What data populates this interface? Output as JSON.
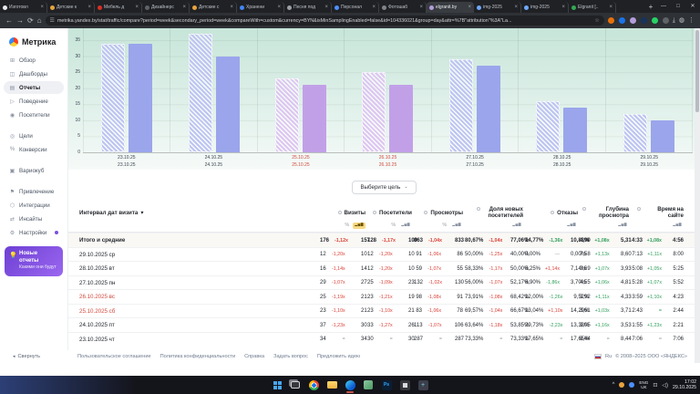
{
  "browser": {
    "tabs": [
      {
        "label": "Изготовл",
        "fav": "#e8eaed",
        "active": false
      },
      {
        "label": "Детские к",
        "fav": "#e8a33d",
        "active": false
      },
      {
        "label": "Мебель д",
        "fav": "#d93025",
        "active": false
      },
      {
        "label": "Дизайнерс",
        "fav": "#5f6368",
        "active": false
      },
      {
        "label": "Детские с",
        "fav": "#e8a33d",
        "active": false
      },
      {
        "label": "Хранени",
        "fav": "#4285f4",
        "active": false
      },
      {
        "label": "Песня под",
        "fav": "#9aa0a6",
        "active": false
      },
      {
        "label": "Персонал",
        "fav": "#4d90fe",
        "active": false
      },
      {
        "label": "Фотошаб",
        "fav": "#7f8489",
        "active": false
      },
      {
        "label": "elgranit.by",
        "fav": "#b39ddb",
        "active": true
      },
      {
        "label": "img-2025",
        "fav": "#6ea8fe",
        "active": false
      },
      {
        "label": "img-2025",
        "fav": "#6ea8fe",
        "active": false
      },
      {
        "label": "Elgranit [..",
        "fav": "#34a853",
        "active": false
      }
    ],
    "new_tab": "+",
    "window_controls": [
      "—",
      "□",
      "✕"
    ],
    "nav_back": "←",
    "nav_forward": "→",
    "nav_reload": "⟳",
    "nav_home": "⌂",
    "site_icon": "☰",
    "bookmark_star": "☆",
    "url": "metrika.yandex.by/stat/traffic/compare?period=week&secondary_period=week&compareWith=custom&currency=BYN&isMinSamplingEnabled=false&id=104336021&group=day&attr=%7B\"attribution\"%3A\"La...",
    "extensions": [
      "#e8710a",
      "#1a73e8",
      "#b39ddb",
      "#16335b",
      "#25d366",
      "#5f6368"
    ],
    "download_icon": "⤓",
    "profile_icon": "◍",
    "menu_icon": "⋮"
  },
  "sidebar": {
    "logo": "Метрика",
    "items": [
      {
        "icon": "⊞",
        "label": "Обзор",
        "selected": false,
        "gap": false,
        "dot": false
      },
      {
        "icon": "◫",
        "label": "Дашборды",
        "selected": false,
        "gap": false,
        "dot": false
      },
      {
        "icon": "▤",
        "label": "Отчеты",
        "selected": true,
        "gap": false,
        "dot": false
      },
      {
        "icon": "▷",
        "label": "Поведение",
        "selected": false,
        "gap": false,
        "dot": false
      },
      {
        "icon": "◉",
        "label": "Посетители",
        "selected": false,
        "gap": false,
        "dot": false
      },
      {
        "icon": "◎",
        "label": "Цели",
        "selected": false,
        "gap": true,
        "dot": false
      },
      {
        "icon": "%",
        "label": "Конверсии",
        "selected": false,
        "gap": false,
        "dot": false
      },
      {
        "icon": "▣",
        "label": "Вариокуб",
        "selected": false,
        "gap": true,
        "dot": false
      },
      {
        "icon": "⚑",
        "label": "Привлечение",
        "selected": false,
        "gap": true,
        "dot": false
      },
      {
        "icon": "⬡",
        "label": "Интеграции",
        "selected": false,
        "gap": false,
        "dot": false
      },
      {
        "icon": "⇄",
        "label": "Инсайты",
        "selected": false,
        "gap": false,
        "dot": false
      },
      {
        "icon": "⚙",
        "label": "Настройки",
        "selected": false,
        "gap": false,
        "dot": true
      }
    ],
    "promo": {
      "icon": "💡",
      "title": "Новые отчеты",
      "subtitle": "Какими они будут"
    }
  },
  "chart_data": {
    "type": "bar",
    "metric": "Визиты",
    "categories": [
      "23.10.25",
      "24.10.25",
      "25.10.25",
      "26.10.25",
      "27.10.25",
      "28.10.25",
      "29.10.25"
    ],
    "weekend": [
      false,
      false,
      true,
      true,
      false,
      false,
      false
    ],
    "series": [
      {
        "name": "Период A (штриховка)",
        "style": "hatched",
        "values": [
          34,
          37,
          23,
          25,
          29,
          16,
          12
        ]
      },
      {
        "name": "Период B (сравнение)",
        "style": "solid",
        "values": [
          34,
          30,
          21,
          21,
          27,
          14,
          10
        ]
      }
    ],
    "ylim": [
      0,
      35
    ],
    "yticks": [
      0,
      5,
      10,
      15,
      20,
      25,
      30,
      35
    ],
    "grid": true,
    "colors": {
      "weekday_a": "#bdc4f2",
      "weekday_b": "#9aa5ec",
      "weekend_a": "#ddc6f1",
      "weekend_b": "#c2a0e8"
    }
  },
  "goal_button": {
    "label": "Выберите цель",
    "caret": "⌄"
  },
  "table": {
    "first_col": "Интервал дат визита",
    "sort_caret": "▾",
    "percent_icon": "%",
    "bars_icon": "▂▅▇",
    "columns": [
      {
        "label": "Визиты",
        "percent_icon": true,
        "selected": true,
        "wide_b": false
      },
      {
        "label": "Посетители",
        "percent_icon": true,
        "selected": false,
        "wide_b": false
      },
      {
        "label": "Просмотры",
        "percent_icon": true,
        "selected": false,
        "wide_b": false
      },
      {
        "label": "Доля новых посетителей",
        "percent_icon": false,
        "selected": false,
        "wide_b": true
      },
      {
        "label": "Отказы",
        "percent_icon": false,
        "selected": false,
        "wide_b": true
      },
      {
        "label": "Глубина просмотра",
        "percent_icon": false,
        "selected": false,
        "wide_b": false
      },
      {
        "label": "Время на сайте",
        "percent_icon": false,
        "selected": false,
        "wide_b": false
      }
    ],
    "rows": [
      {
        "label": "Итого и средние",
        "weekend": false,
        "total": true,
        "cells": [
          {
            "a": "176",
            "r": "-1,12x",
            "b": "157",
            "c": "red"
          },
          {
            "a": "128",
            "r": "-1,17x",
            "b": "109",
            "c": "red"
          },
          {
            "a": "863",
            "r": "-1,04x",
            "b": "833",
            "c": "red"
          },
          {
            "a": "80,67%",
            "r": "-1,04x",
            "b": "77,06%",
            "c": "red"
          },
          {
            "a": "14,77%",
            "r": "-1,36x",
            "b": "10,83%",
            "c": "green"
          },
          {
            "a": "4,90",
            "r": "+1,08x",
            "b": "5,31",
            "c": "green"
          },
          {
            "a": "4:33",
            "r": "+1,08x",
            "b": "4:56",
            "c": "green"
          }
        ]
      },
      {
        "label": "29.10.2025 ср",
        "weekend": false,
        "total": false,
        "cells": [
          {
            "a": "12",
            "r": "-1,20x",
            "b": "10",
            "c": "red"
          },
          {
            "a": "12",
            "r": "-1,20x",
            "b": "10",
            "c": "red"
          },
          {
            "a": "91",
            "r": "-1,06x",
            "b": "86",
            "c": "red"
          },
          {
            "a": "50,00%",
            "r": "-1,25x",
            "b": "40,00%",
            "c": "red"
          },
          {
            "a": "0,00%",
            "r": "—",
            "b": "0,00%",
            "c": "gray"
          },
          {
            "a": "7,58",
            "r": "+1,13x",
            "b": "8,60",
            "c": "green"
          },
          {
            "a": "7:13",
            "r": "+1,11x",
            "b": "8:00",
            "c": "green"
          }
        ]
      },
      {
        "label": "28.10.2025 вт",
        "weekend": false,
        "total": false,
        "cells": [
          {
            "a": "16",
            "r": "-1,14x",
            "b": "14",
            "c": "red"
          },
          {
            "a": "12",
            "r": "-1,20x",
            "b": "10",
            "c": "red"
          },
          {
            "a": "59",
            "r": "-1,07x",
            "b": "55",
            "c": "red"
          },
          {
            "a": "58,33%",
            "r": "-1,17x",
            "b": "50,00%",
            "c": "red"
          },
          {
            "a": "6,25%",
            "r": "+1,14x",
            "b": "7,14%",
            "c": "red"
          },
          {
            "a": "3,69",
            "r": "+1,07x",
            "b": "3,93",
            "c": "green"
          },
          {
            "a": "5:08",
            "r": "+1,05x",
            "b": "5:25",
            "c": "green"
          }
        ]
      },
      {
        "label": "27.10.2025 пн",
        "weekend": false,
        "total": false,
        "cells": [
          {
            "a": "29",
            "r": "-1,07x",
            "b": "27",
            "c": "red"
          },
          {
            "a": "25",
            "r": "-1,09x",
            "b": "23",
            "c": "red"
          },
          {
            "a": "132",
            "r": "-1,02x",
            "b": "130",
            "c": "red"
          },
          {
            "a": "56,00%",
            "r": "-1,07x",
            "b": "52,17%",
            "c": "red"
          },
          {
            "a": "6,90%",
            "r": "-1,86x",
            "b": "3,70%",
            "c": "green"
          },
          {
            "a": "4,55",
            "r": "+1,06x",
            "b": "4,81",
            "c": "green"
          },
          {
            "a": "5:28",
            "r": "+1,07x",
            "b": "5:52",
            "c": "green"
          }
        ]
      },
      {
        "label": "26.10.2025 вс",
        "weekend": true,
        "total": false,
        "cells": [
          {
            "a": "25",
            "r": "-1,19x",
            "b": "21",
            "c": "red"
          },
          {
            "a": "23",
            "r": "-1,21x",
            "b": "19",
            "c": "red"
          },
          {
            "a": "98",
            "r": "-1,08x",
            "b": "91",
            "c": "red"
          },
          {
            "a": "73,91%",
            "r": "-1,08x",
            "b": "68,42%",
            "c": "red"
          },
          {
            "a": "12,00%",
            "r": "-1,26x",
            "b": "9,52%",
            "c": "green"
          },
          {
            "a": "3,92",
            "r": "+1,11x",
            "b": "4,33",
            "c": "green"
          },
          {
            "a": "3:59",
            "r": "+1,10x",
            "b": "4:23",
            "c": "green"
          }
        ]
      },
      {
        "label": "25.10.2025 сб",
        "weekend": true,
        "total": false,
        "cells": [
          {
            "a": "23",
            "r": "-1,10x",
            "b": "21",
            "c": "red"
          },
          {
            "a": "23",
            "r": "-1,10x",
            "b": "21",
            "c": "red"
          },
          {
            "a": "83",
            "r": "-1,06x",
            "b": "78",
            "c": "red"
          },
          {
            "a": "69,57%",
            "r": "-1,04x",
            "b": "66,67%",
            "c": "red"
          },
          {
            "a": "13,04%",
            "r": "+1,10x",
            "b": "14,29%",
            "c": "red"
          },
          {
            "a": "3,61",
            "r": "+1,03x",
            "b": "3,71",
            "c": "green"
          },
          {
            "a": "2:43",
            "r": "=",
            "b": "2:44",
            "c": "green"
          }
        ]
      },
      {
        "label": "24.10.2025 пт",
        "weekend": false,
        "total": false,
        "cells": [
          {
            "a": "37",
            "r": "-1,23x",
            "b": "30",
            "c": "red"
          },
          {
            "a": "33",
            "r": "-1,27x",
            "b": "26",
            "c": "red"
          },
          {
            "a": "113",
            "r": "-1,07x",
            "b": "106",
            "c": "red"
          },
          {
            "a": "63,64%",
            "r": "-1,18x",
            "b": "53,85%",
            "c": "red"
          },
          {
            "a": "29,73%",
            "r": "-2,23x",
            "b": "13,33%",
            "c": "green"
          },
          {
            "a": "3,05",
            "r": "+1,16x",
            "b": "3,53",
            "c": "green"
          },
          {
            "a": "1:55",
            "r": "+1,23x",
            "b": "2:21",
            "c": "green"
          }
        ]
      },
      {
        "label": "23.10.2025 чт",
        "weekend": false,
        "total": false,
        "cells": [
          {
            "a": "34",
            "r": "=",
            "b": "34",
            "c": "gray"
          },
          {
            "a": "30",
            "r": "=",
            "b": "30",
            "c": "gray"
          },
          {
            "a": "287",
            "r": "=",
            "b": "287",
            "c": "gray"
          },
          {
            "a": "73,33%",
            "r": "=",
            "b": "73,33%",
            "c": "gray"
          },
          {
            "a": "17,65%",
            "r": "=",
            "b": "17,65%",
            "c": "gray"
          },
          {
            "a": "8,44",
            "r": "=",
            "b": "8,44",
            "c": "gray"
          },
          {
            "a": "7:06",
            "r": "=",
            "b": "7:06",
            "c": "gray"
          }
        ]
      }
    ]
  },
  "footer": {
    "collapse": "Свернуть",
    "collapse_arrow": "◂",
    "links": [
      "Пользовательское соглашение",
      "Политика конфиденциальности",
      "Справка",
      "Задать вопрос",
      "Предложить идею"
    ],
    "lang": "Ru",
    "copyright": "© 2008–2025 ООО «ЯНДЕКС»"
  },
  "taskbar": {
    "icons": [
      {
        "name": "start",
        "active": false
      },
      {
        "name": "taskview",
        "active": false
      },
      {
        "name": "chrome",
        "active": false
      },
      {
        "name": "explorer",
        "active": false
      },
      {
        "name": "edge",
        "active": true
      },
      {
        "name": "photos",
        "active": false
      },
      {
        "name": "photoshop",
        "active": false,
        "label": "Ps"
      },
      {
        "name": "app-dark",
        "active": false
      },
      {
        "name": "snip",
        "active": false,
        "label": "+"
      }
    ],
    "tray_chevron": "^",
    "lang_top": "ENG",
    "lang_bottom": "UK",
    "time": "17:02",
    "date": "29.10.2025"
  }
}
